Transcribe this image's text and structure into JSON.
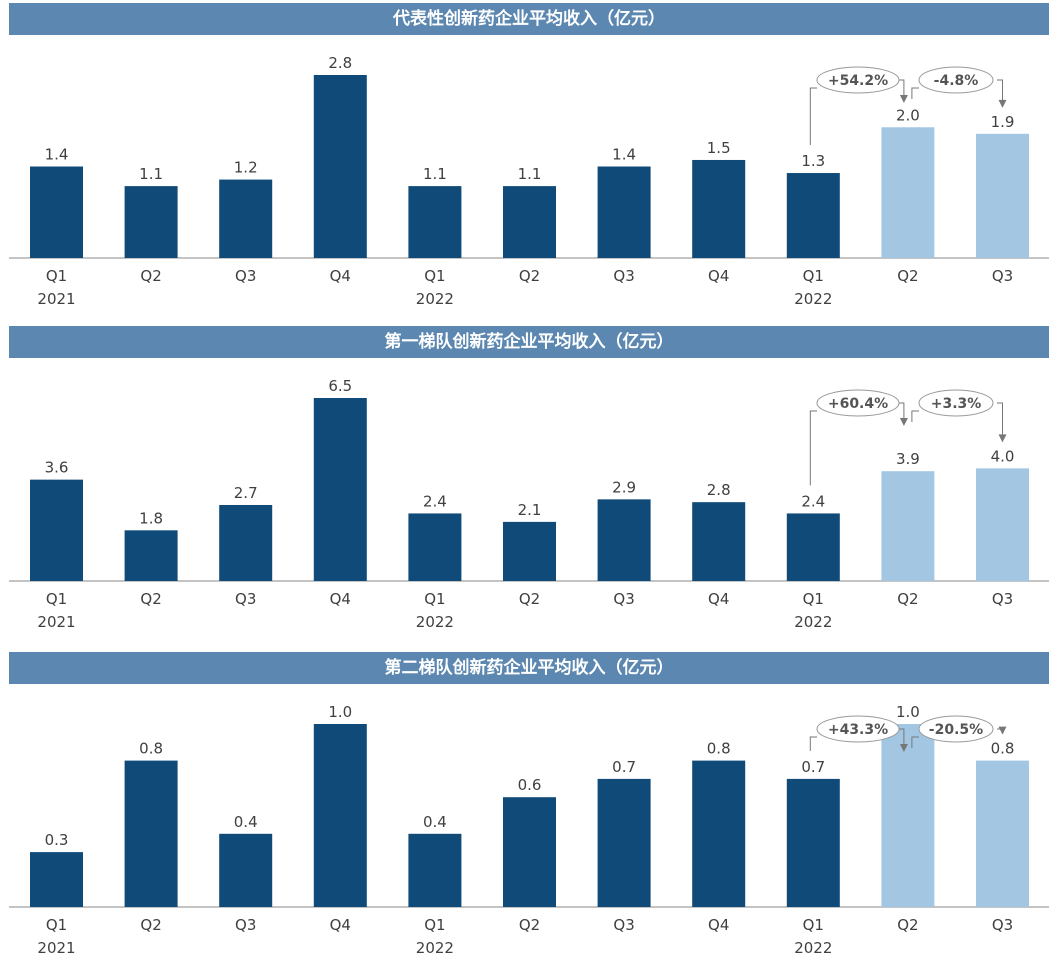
{
  "colors": {
    "title_bg": "#5b87b1",
    "bar_dark": "#0f4a78",
    "bar_light": "#a3c6e3",
    "axis": "#888888",
    "annotation": "#777777"
  },
  "chart_data": [
    {
      "type": "bar",
      "title": "代表性创新药企业平均收入（亿元）",
      "categories": [
        "Q1",
        "Q2",
        "Q3",
        "Q4",
        "Q1",
        "Q2",
        "Q3",
        "Q4",
        "Q1",
        "Q2",
        "Q3"
      ],
      "year_labels": [
        "2021",
        "2022",
        "2022"
      ],
      "values": [
        1.4,
        1.1,
        1.2,
        2.8,
        1.1,
        1.1,
        1.4,
        1.5,
        1.3,
        2.0,
        1.9
      ],
      "highlighted": [
        false,
        false,
        false,
        false,
        false,
        false,
        false,
        false,
        false,
        true,
        true
      ],
      "annotations": [
        "+54.2%",
        "-4.8%"
      ]
    },
    {
      "type": "bar",
      "title": "第一梯队创新药企业平均收入（亿元）",
      "categories": [
        "Q1",
        "Q2",
        "Q3",
        "Q4",
        "Q1",
        "Q2",
        "Q3",
        "Q4",
        "Q1",
        "Q2",
        "Q3"
      ],
      "year_labels": [
        "2021",
        "2022",
        "2022"
      ],
      "values": [
        3.6,
        1.8,
        2.7,
        6.5,
        2.4,
        2.1,
        2.9,
        2.8,
        2.4,
        3.9,
        4.0
      ],
      "highlighted": [
        false,
        false,
        false,
        false,
        false,
        false,
        false,
        false,
        false,
        true,
        true
      ],
      "annotations": [
        "+60.4%",
        "+3.3%"
      ]
    },
    {
      "type": "bar",
      "title": "第二梯队创新药企业平均收入（亿元）",
      "categories": [
        "Q1",
        "Q2",
        "Q3",
        "Q4",
        "Q1",
        "Q2",
        "Q3",
        "Q4",
        "Q1",
        "Q2",
        "Q3"
      ],
      "year_labels": [
        "2021",
        "2022",
        "2022"
      ],
      "values": [
        0.3,
        0.8,
        0.4,
        1.0,
        0.4,
        0.6,
        0.7,
        0.8,
        0.7,
        1.0,
        0.8
      ],
      "highlighted": [
        false,
        false,
        false,
        false,
        false,
        false,
        false,
        false,
        false,
        true,
        true
      ],
      "annotations": [
        "+43.3%",
        "-20.5%"
      ]
    }
  ]
}
